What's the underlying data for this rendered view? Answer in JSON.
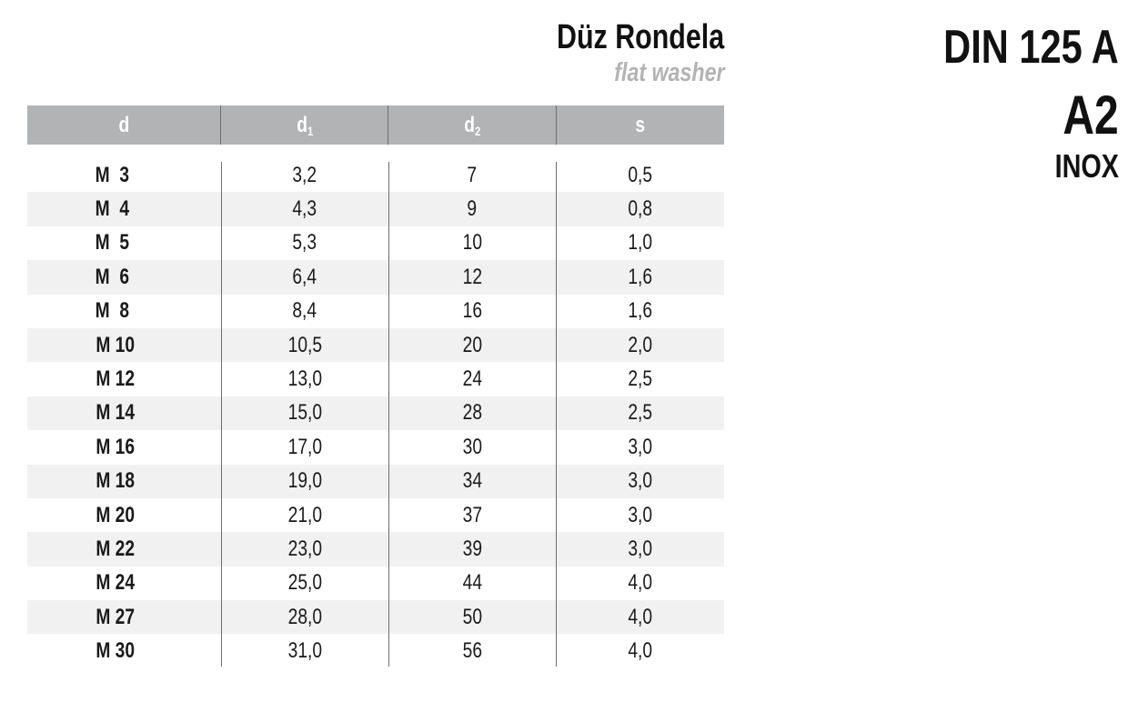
{
  "header": {
    "title": "Düz Rondela",
    "subtitle": "flat washer",
    "standard": "DIN 125 A",
    "grade": "A2",
    "material": "INOX"
  },
  "table": {
    "columns": [
      {
        "label": "d",
        "sub": ""
      },
      {
        "label": "d",
        "sub": "1"
      },
      {
        "label": "d",
        "sub": "2"
      },
      {
        "label": "s",
        "sub": ""
      }
    ],
    "rows": [
      [
        "M  3",
        "3,2",
        "7",
        "0,5"
      ],
      [
        "M  4",
        "4,3",
        "9",
        "0,8"
      ],
      [
        "M  5",
        "5,3",
        "10",
        "1,0"
      ],
      [
        "M  6",
        "6,4",
        "12",
        "1,6"
      ],
      [
        "M  8",
        "8,4",
        "16",
        "1,6"
      ],
      [
        "M 10",
        "10,5",
        "20",
        "2,0"
      ],
      [
        "M 12",
        "13,0",
        "24",
        "2,5"
      ],
      [
        "M 14",
        "15,0",
        "28",
        "2,5"
      ],
      [
        "M 16",
        "17,0",
        "30",
        "3,0"
      ],
      [
        "M 18",
        "19,0",
        "34",
        "3,0"
      ],
      [
        "M 20",
        "21,0",
        "37",
        "3,0"
      ],
      [
        "M 22",
        "23,0",
        "39",
        "3,0"
      ],
      [
        "M 24",
        "25,0",
        "44",
        "4,0"
      ],
      [
        "M 27",
        "28,0",
        "50",
        "4,0"
      ],
      [
        "M 30",
        "31,0",
        "56",
        "4,0"
      ]
    ]
  }
}
